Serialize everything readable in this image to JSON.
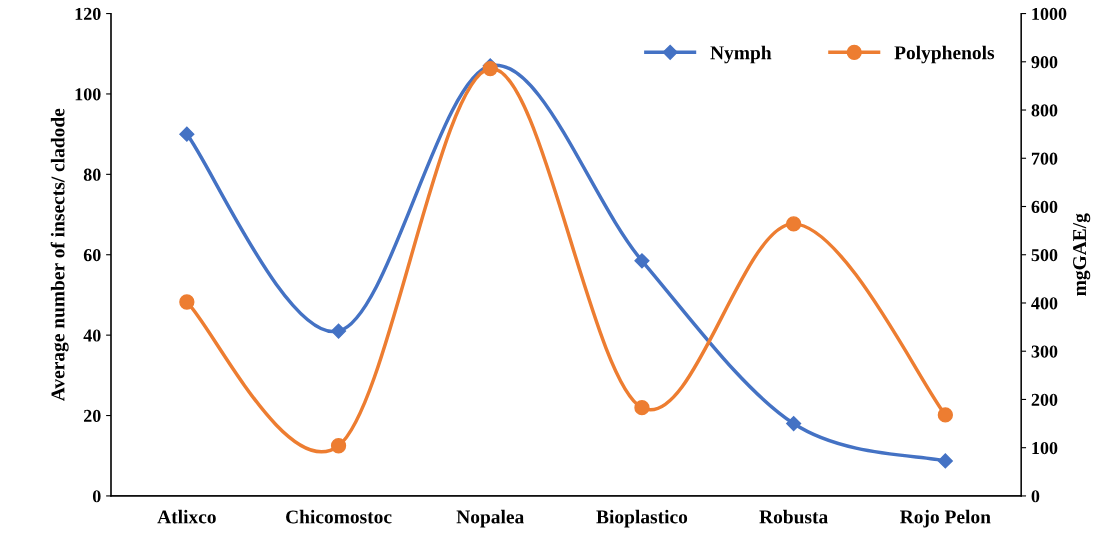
{
  "chart_data": {
    "type": "line",
    "ylabel": "Average number of insects/ cladode",
    "y2label": "mgGAE/g",
    "categories": [
      "Atlixco",
      "Chicomostoc",
      "Nopalea",
      "Bioplastico",
      "Robusta",
      "Rojo Pelon"
    ],
    "series": [
      {
        "name": "Nymph",
        "color": "#4472c4",
        "marker": "diamond",
        "values": [
          90,
          41,
          107,
          58.5,
          18,
          8.7
        ]
      },
      {
        "name": "Polyphenols",
        "color": "#ed7d31",
        "marker": "circle",
        "axis": "y2",
        "values": [
          402,
          104,
          886,
          183,
          564,
          168
        ]
      }
    ],
    "ylim": [
      0,
      120
    ],
    "yticks": [
      0,
      20,
      40,
      60,
      80,
      100,
      120
    ],
    "y2lim": [
      0,
      1000
    ],
    "y2ticks": [
      0,
      100,
      200,
      300,
      400,
      500,
      600,
      700,
      800,
      900,
      1000
    ],
    "legend": "top right",
    "grid": false,
    "line_style": "solid"
  }
}
